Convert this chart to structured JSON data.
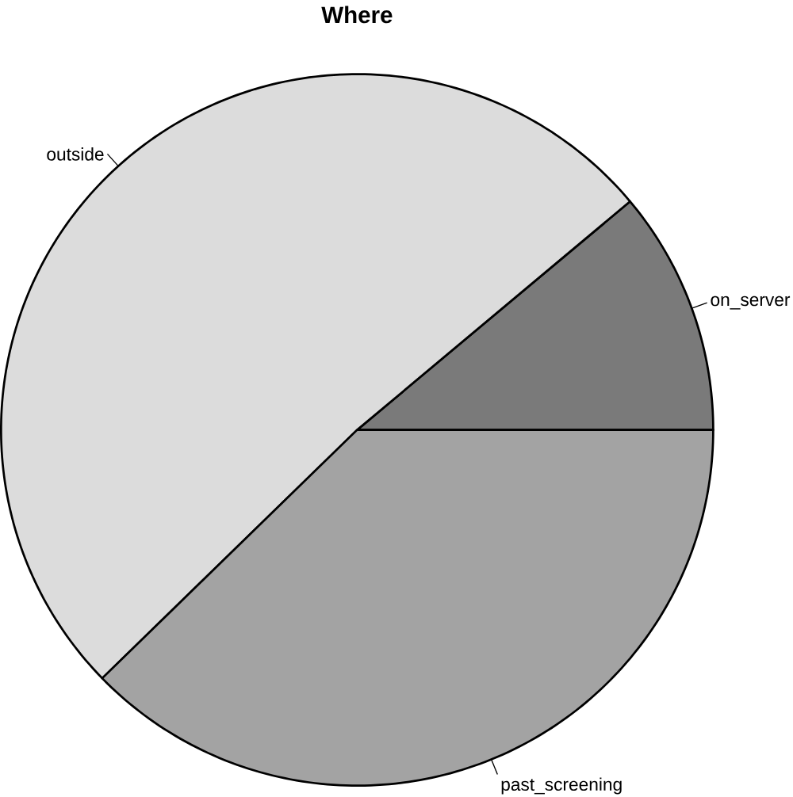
{
  "chart_data": {
    "type": "pie",
    "title": "Where",
    "categories": [
      "on_server",
      "outside",
      "past_screening"
    ],
    "values": [
      11.1,
      51.2,
      37.7
    ],
    "colors": [
      "#7a7a7a",
      "#dcdcdc",
      "#a3a3a3"
    ]
  }
}
